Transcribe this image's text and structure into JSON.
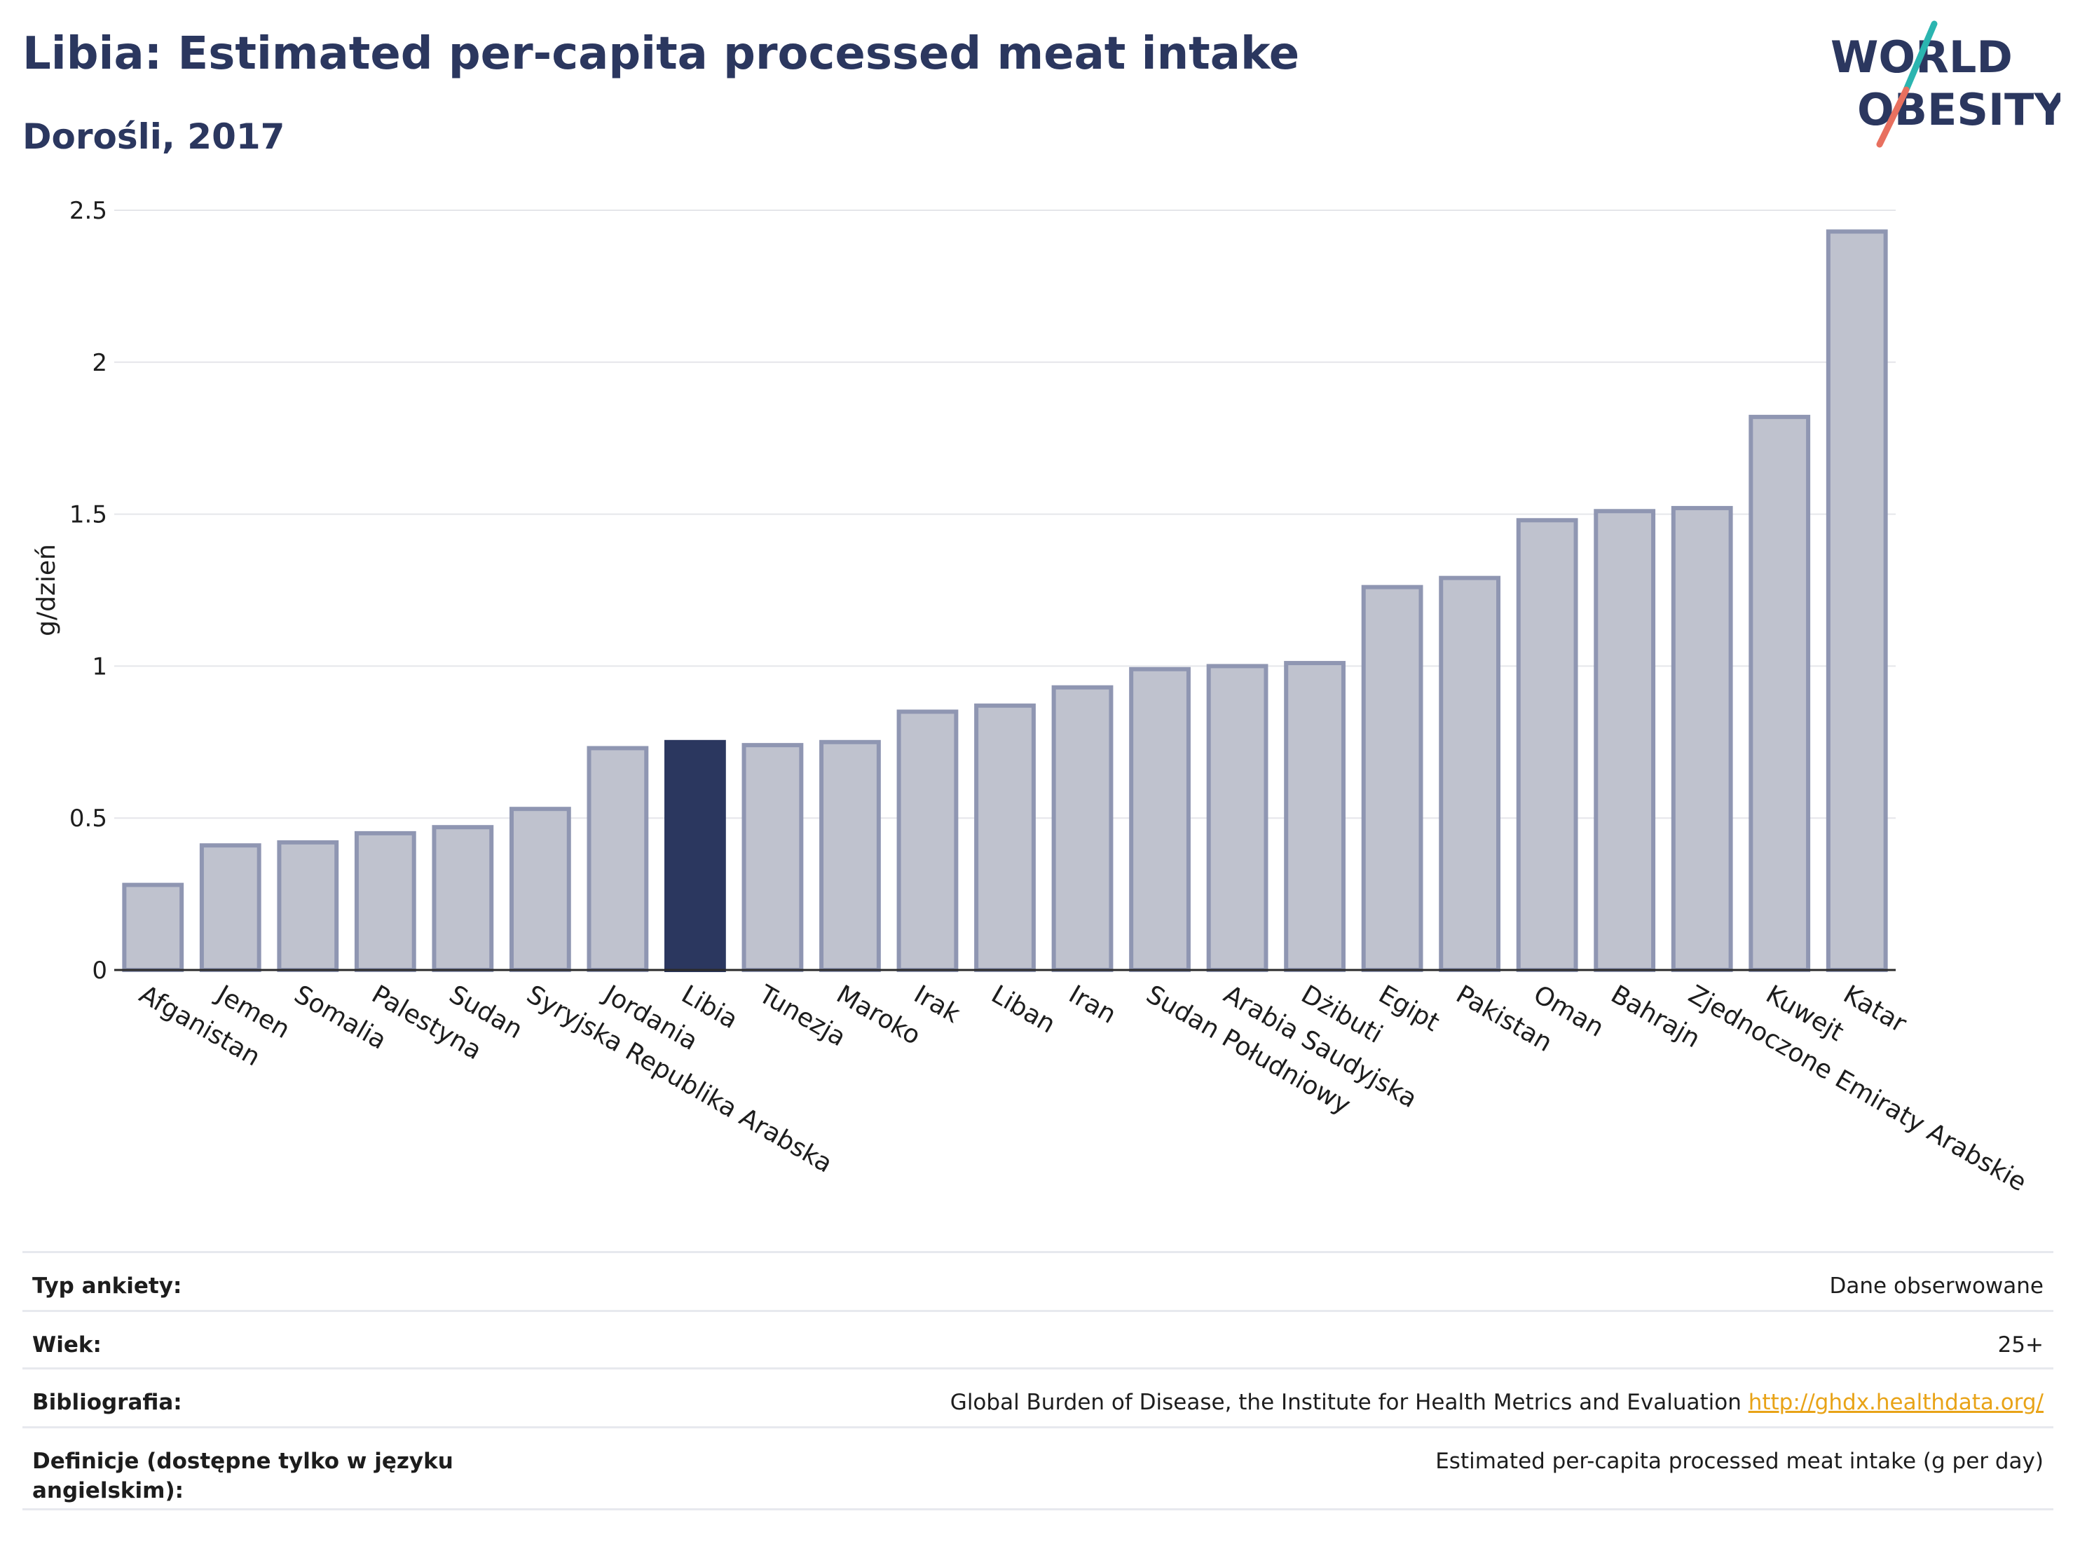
{
  "header": {
    "title": "Libia: Estimated per-capita processed meat intake",
    "subtitle": "Dorośli, 2017"
  },
  "logo": {
    "line1": "WORLD",
    "line2": "OBESITY",
    "slash_colors": [
      "#2bb5b0",
      "#e8705f"
    ]
  },
  "colors": {
    "bar_default": "#bfc2ce",
    "bar_border": "#8f96b2",
    "bar_highlight": "#2b375f",
    "grid": "#e5e6ea",
    "text_primary": "#2b375f",
    "link": "#e8a317"
  },
  "chart_data": {
    "type": "bar",
    "ylabel": "g/dzień",
    "ylim": [
      0,
      2.5
    ],
    "yticks": [
      0,
      0.5,
      1,
      1.5,
      2,
      2.5
    ],
    "ytick_labels": [
      "0",
      "0.5",
      "1",
      "1.5",
      "2",
      "2.5"
    ],
    "grid": true,
    "highlight": "Libia",
    "categories": [
      "Afganistan",
      "Jemen",
      "Somalia",
      "Palestyna",
      "Sudan",
      "Syryjska Republika Arabska",
      "Jordania",
      "Libia",
      "Tunezja",
      "Maroko",
      "Irak",
      "Liban",
      "Iran",
      "Sudan Południowy",
      "Arabia Saudyjska",
      "Dżibuti",
      "Egipt",
      "Pakistan",
      "Oman",
      "Bahrajn",
      "Zjednoczone Emiraty Arabskie",
      "Kuwejt",
      "Katar"
    ],
    "values": [
      0.28,
      0.41,
      0.42,
      0.45,
      0.47,
      0.53,
      0.73,
      0.75,
      0.74,
      0.75,
      0.85,
      0.87,
      0.93,
      0.99,
      1.0,
      1.01,
      1.26,
      1.29,
      1.48,
      1.51,
      1.52,
      1.82,
      2.43
    ]
  },
  "meta": [
    {
      "label": "Typ ankiety:",
      "value": "Dane obserwowane"
    },
    {
      "label": "Wiek:",
      "value": "25+"
    },
    {
      "label": "Bibliografia:",
      "value": "Global Burden of Disease, the Institute for Health Metrics and Evaluation",
      "link": "http://ghdx.healthdata.org/"
    },
    {
      "label": "Definicje (dostępne tylko w języku angielskim):",
      "value": "Estimated per-capita processed meat intake (g per day)"
    }
  ]
}
